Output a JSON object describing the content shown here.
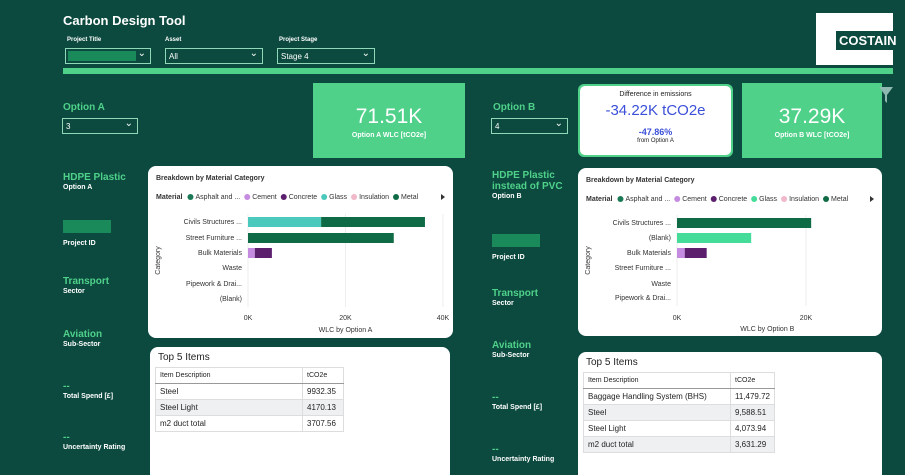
{
  "header": {
    "title": "Carbon Design Tool",
    "logo": "COSTAIN"
  },
  "filters": [
    {
      "label": "Project Title"
    },
    {
      "label": "Asset",
      "value": "All"
    },
    {
      "label": "Project Stage",
      "value": "Stage 4"
    }
  ],
  "kpis": {
    "option_a_wlc": {
      "value": "71.51K",
      "label": "Option A WLC [tCO2e]"
    },
    "difference": {
      "title": "Difference in emissions",
      "value": "-34.22K tCO2e",
      "percent": "-47.86%",
      "note": "from Option A"
    },
    "option_b_wlc": {
      "value": "37.29K",
      "label": "Option B WLC [tCO2e]"
    }
  },
  "option_a": {
    "label": "Option A",
    "selection": "3",
    "details": [
      {
        "value": "HDPE Plastic",
        "label": "Option A"
      },
      {
        "label": "Project ID"
      },
      {
        "value": "Transport",
        "label": "Sector"
      },
      {
        "value": "Aviation",
        "label": "Sub-Sector"
      },
      {
        "value": "--",
        "label": "Total Spend [£]"
      },
      {
        "value": "--",
        "label": "Uncertainty Rating"
      }
    ],
    "chart": {
      "type": "bar",
      "orientation": "horizontal",
      "stacked": true,
      "title": "Breakdown by Material Category",
      "legend_title": "Material",
      "ylabel": "Category",
      "xlabel": "WLC by Option A",
      "categories": [
        "Civils Structures ...",
        "Street Furniture ...",
        "Bulk Materials",
        "Waste",
        "Pipework & Drai...",
        "(Blank)"
      ],
      "series": [
        {
          "name": "Asphalt and ...",
          "color": "#1b7a55",
          "values": [
            null,
            null,
            null,
            null,
            null,
            null
          ]
        },
        {
          "name": "Cement",
          "color": "#c58be0",
          "values": [
            null,
            null,
            1.4,
            null,
            null,
            null
          ]
        },
        {
          "name": "Concrete",
          "color": "#5b1f6e",
          "values": [
            null,
            null,
            3.5,
            null,
            null,
            null
          ]
        },
        {
          "name": "Glass",
          "color": "#4cc9bd",
          "values": [
            15.0,
            null,
            null,
            null,
            null,
            null
          ]
        },
        {
          "name": "Insulation",
          "color": "#f0b8c8",
          "values": [
            null,
            null,
            null,
            null,
            null,
            null
          ]
        },
        {
          "name": "Metal",
          "color": "#0f6b45",
          "values": [
            21.3,
            29.9,
            null,
            null,
            null,
            null
          ]
        }
      ],
      "xlim": [
        0,
        40
      ],
      "xticks": [
        {
          "value": 0,
          "label": "0K"
        },
        {
          "value": 20,
          "label": "20K"
        },
        {
          "value": 40,
          "label": "40K"
        }
      ]
    },
    "table": {
      "title": "Top 5 Items",
      "columns": [
        "Item Description",
        "tCO2e"
      ],
      "rows": [
        [
          "Steel",
          "9932.35"
        ],
        [
          "Steel Light",
          "4170.13"
        ],
        [
          "m2 duct total",
          "3707.56"
        ]
      ]
    }
  },
  "option_b": {
    "label": "Option B",
    "selection": "4",
    "details": [
      {
        "value": "HDPE Plastic instead of PVC",
        "label": "Option B"
      },
      {
        "label": "Project ID"
      },
      {
        "value": "Transport",
        "label": "Sector"
      },
      {
        "value": "Aviation",
        "label": "Sub-Sector"
      },
      {
        "value": "--",
        "label": "Total Spend [£]"
      },
      {
        "value": "--",
        "label": "Uncertainty Rating"
      }
    ],
    "chart": {
      "type": "bar",
      "orientation": "horizontal",
      "stacked": true,
      "title": "Breakdown by Material Category",
      "legend_title": "Material",
      "ylabel": "Category",
      "xlabel": "WLC by Option B",
      "categories": [
        "Civils Structures ...",
        "(Blank)",
        "Bulk Materials",
        "Street Furniture ...",
        "Waste",
        "Pipework & Drai..."
      ],
      "series": [
        {
          "name": "Asphalt and ...",
          "color": "#1b7a55",
          "values": [
            null,
            null,
            null,
            null,
            null,
            null
          ]
        },
        {
          "name": "Cement",
          "color": "#c58be0",
          "values": [
            null,
            null,
            1.2,
            null,
            null,
            null
          ]
        },
        {
          "name": "Concrete",
          "color": "#5b1f6e",
          "values": [
            null,
            null,
            3.4,
            null,
            null,
            null
          ]
        },
        {
          "name": "Glass",
          "color": "#45dc9a",
          "values": [
            null,
            11.5,
            null,
            null,
            null,
            null
          ]
        },
        {
          "name": "Insulation",
          "color": "#f0b8c8",
          "values": [
            null,
            null,
            null,
            null,
            null,
            null
          ]
        },
        {
          "name": "Metal",
          "color": "#0f6b45",
          "values": [
            20.8,
            null,
            null,
            null,
            null,
            null
          ]
        }
      ],
      "xlim": [
        0,
        28
      ],
      "xticks": [
        {
          "value": 0,
          "label": "0K"
        },
        {
          "value": 20,
          "label": "20K"
        }
      ]
    },
    "table": {
      "title": "Top 5 Items",
      "columns": [
        "Item Description",
        "tCO2e"
      ],
      "rows": [
        [
          "Baggage Handling System (BHS)",
          "11,479.72"
        ],
        [
          "Steel",
          "9,588.51"
        ],
        [
          "Steel Light",
          "4,073.94"
        ],
        [
          "m2 duct total",
          "3,631.29"
        ]
      ]
    }
  }
}
